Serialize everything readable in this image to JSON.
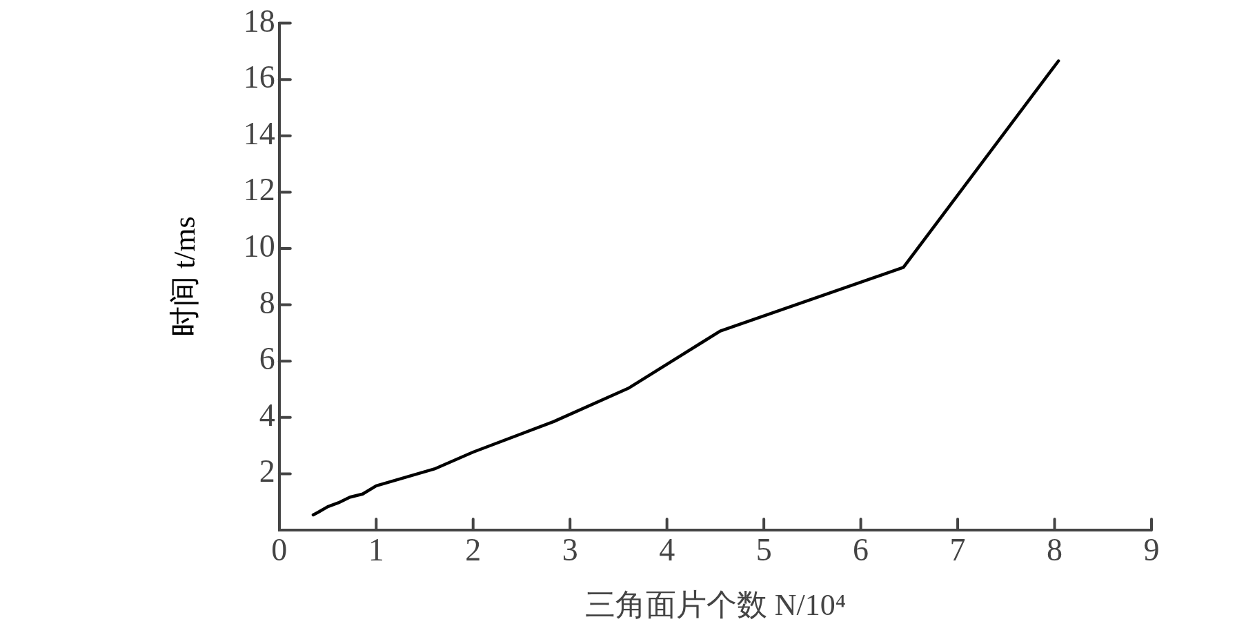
{
  "chart_data": {
    "type": "line",
    "xlabel": "三角面片个数 N/10⁴",
    "ylabel": "时间 t/ms",
    "x": [
      0.35,
      0.4,
      0.5,
      0.61,
      0.73,
      0.86,
      1.0,
      1.6,
      2.0,
      2.83,
      3.61,
      4.55,
      6.44,
      8.04
    ],
    "series": [
      {
        "color": "#000000",
        "values": [
          0.54,
          0.63,
          0.83,
          0.97,
          1.17,
          1.28,
          1.57,
          2.17,
          2.77,
          3.85,
          5.05,
          7.07,
          9.33,
          16.66
        ]
      }
    ],
    "xlim": [
      0,
      9
    ],
    "xticks": [
      0,
      1,
      2,
      3,
      4,
      5,
      6,
      7,
      8,
      9
    ],
    "ylim": [
      0,
      18
    ],
    "yticks": [
      2,
      4,
      6,
      8,
      10,
      12,
      14,
      16,
      18
    ],
    "grid": false,
    "legend": false,
    "marker": "none",
    "line_style": "solid"
  }
}
